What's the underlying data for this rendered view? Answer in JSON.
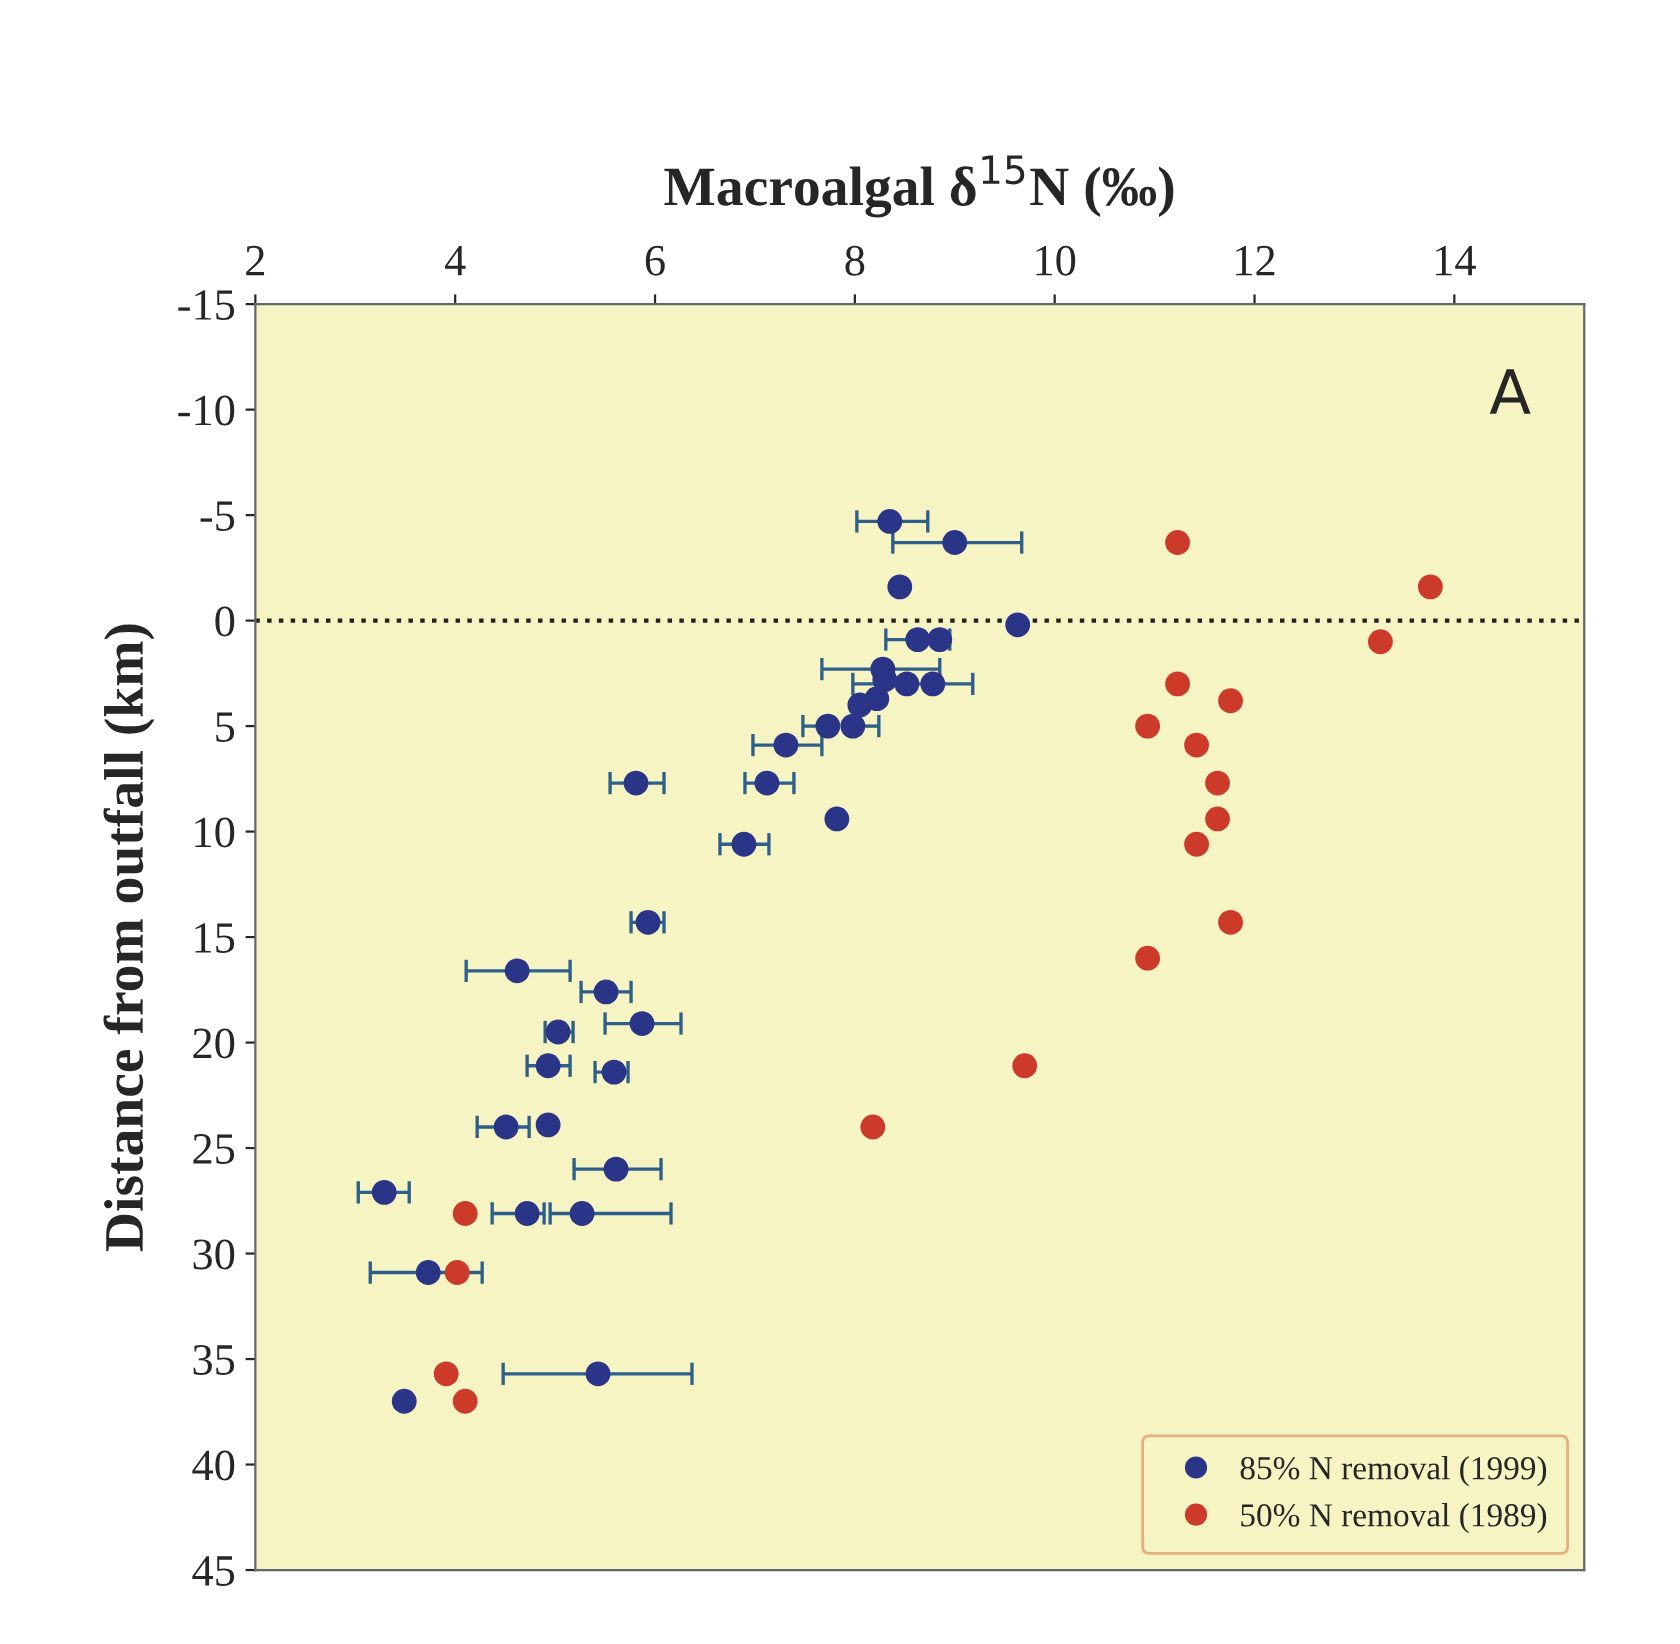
{
  "chart_data": {
    "type": "scatter",
    "xlabel": "Macroalgal δ$^{15}$N (‰)",
    "ylabel": "Distance from outfall (km)",
    "xlim": [
      2,
      15.3
    ],
    "xticks": [
      2,
      4,
      6,
      8,
      10,
      12,
      14
    ],
    "ylim": [
      45,
      -15
    ],
    "yticks": [
      -15,
      -10,
      -5,
      0,
      5,
      10,
      15,
      20,
      25,
      30,
      35,
      40,
      45
    ],
    "marker": "circle",
    "legend": "bottom right",
    "grid": false,
    "ref_lines": [
      {
        "axis": "y",
        "value": 0,
        "line_style": "dotted",
        "color": "#222222"
      }
    ],
    "annotations": [
      "A"
    ],
    "series": [
      {
        "name": "85% N removal (1999)",
        "color": "#2b3587",
        "x": [
          8.35,
          9.0,
          8.45,
          9.63,
          8.63,
          8.85,
          8.28,
          8.3,
          8.52,
          8.78,
          8.05,
          8.22,
          7.73,
          7.98,
          7.31,
          5.81,
          7.12,
          7.82,
          6.89,
          5.93,
          4.62,
          5.51,
          5.87,
          5.03,
          4.93,
          5.59,
          4.51,
          4.93,
          5.61,
          3.29,
          4.72,
          5.27,
          3.73,
          5.43,
          3.49
        ],
        "values": [
          -4.7,
          -3.7,
          -1.6,
          0.2,
          0.9,
          0.9,
          2.3,
          2.8,
          3.0,
          3.0,
          4.0,
          3.7,
          5.0,
          5.0,
          5.9,
          7.7,
          7.7,
          9.4,
          10.6,
          14.3,
          16.6,
          17.6,
          19.1,
          19.5,
          21.1,
          21.4,
          24.0,
          23.9,
          26.0,
          27.1,
          28.1,
          28.1,
          30.9,
          35.7,
          37.0
        ],
        "xerrors": [
          [
            8.02,
            8.73
          ],
          [
            8.38,
            9.67
          ],
          null,
          null,
          [
            8.31,
            8.95
          ],
          null,
          [
            7.67,
            8.85
          ],
          null,
          [
            7.98,
            9.18
          ],
          null,
          null,
          null,
          [
            7.48,
            7.73
          ],
          [
            7.98,
            8.24
          ],
          [
            6.98,
            7.67
          ],
          [
            5.55,
            6.09
          ],
          [
            6.9,
            7.39
          ],
          null,
          [
            6.65,
            7.14
          ],
          [
            5.76,
            6.09
          ],
          [
            4.11,
            5.15
          ],
          [
            5.26,
            5.76
          ],
          [
            5.5,
            6.26
          ],
          [
            4.9,
            5.18
          ],
          [
            4.72,
            5.15
          ],
          [
            5.4,
            5.73
          ],
          [
            4.22,
            4.74
          ],
          null,
          [
            5.19,
            6.06
          ],
          [
            3.03,
            3.54
          ],
          [
            4.37,
            4.89
          ],
          [
            4.95,
            6.16
          ],
          [
            3.15,
            4.27
          ],
          [
            4.48,
            6.37
          ],
          null
        ]
      },
      {
        "name": "50% N removal (1989)",
        "color": "#cc3b2a",
        "x": [
          11.23,
          13.76,
          13.26,
          11.23,
          11.76,
          10.93,
          11.42,
          11.63,
          11.63,
          11.42,
          11.76,
          10.93,
          9.7,
          8.18,
          4.1,
          4.02,
          3.91,
          4.1
        ],
        "values": [
          -3.7,
          -1.6,
          1.0,
          3.0,
          3.8,
          5.0,
          5.9,
          7.7,
          9.4,
          10.6,
          14.3,
          16.0,
          21.1,
          24.0,
          28.1,
          30.9,
          35.7,
          37.0
        ]
      }
    ]
  }
}
